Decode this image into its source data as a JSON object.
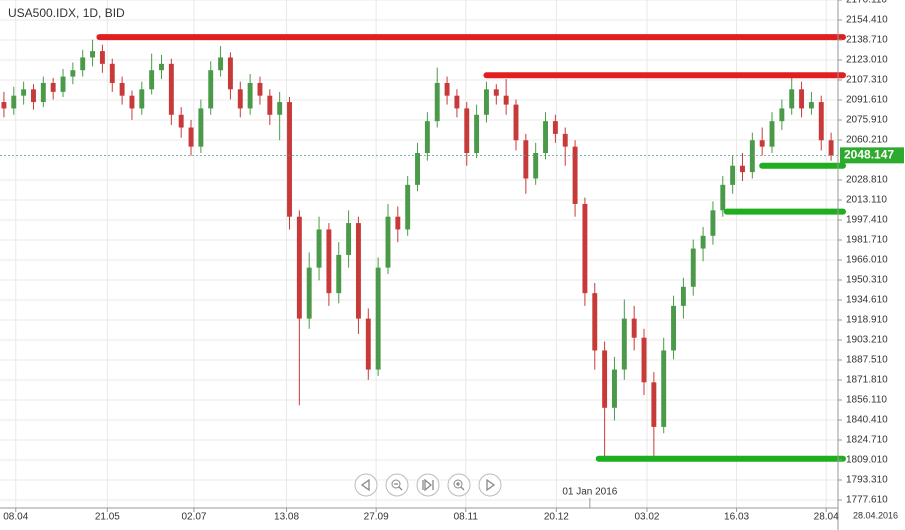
{
  "chart_data": {
    "type": "candlestick",
    "title": "USA500.IDX, 1D, BID",
    "up_color": "#4a9a4a",
    "down_color": "#c83a3a",
    "ohlc": [
      [
        2090,
        2098,
        2078,
        2085
      ],
      [
        2085,
        2102,
        2080,
        2095
      ],
      [
        2095,
        2106,
        2088,
        2100
      ],
      [
        2100,
        2104,
        2084,
        2090
      ],
      [
        2090,
        2110,
        2086,
        2105
      ],
      [
        2105,
        2109,
        2092,
        2098
      ],
      [
        2098,
        2116,
        2094,
        2110
      ],
      [
        2110,
        2121,
        2104,
        2115
      ],
      [
        2115,
        2131,
        2110,
        2125
      ],
      [
        2125,
        2139,
        2118,
        2130
      ],
      [
        2130,
        2135,
        2113,
        2120
      ],
      [
        2120,
        2124,
        2098,
        2105
      ],
      [
        2105,
        2110,
        2088,
        2095
      ],
      [
        2095,
        2099,
        2076,
        2085
      ],
      [
        2085,
        2106,
        2080,
        2100
      ],
      [
        2100,
        2128,
        2096,
        2115
      ],
      [
        2115,
        2127,
        2108,
        2120
      ],
      [
        2120,
        2124,
        2072,
        2080
      ],
      [
        2080,
        2086,
        2062,
        2070
      ],
      [
        2070,
        2076,
        2048,
        2055
      ],
      [
        2055,
        2092,
        2050,
        2085
      ],
      [
        2085,
        2122,
        2080,
        2115
      ],
      [
        2115,
        2134,
        2110,
        2125
      ],
      [
        2125,
        2129,
        2092,
        2100
      ],
      [
        2100,
        2106,
        2078,
        2085
      ],
      [
        2085,
        2112,
        2080,
        2105
      ],
      [
        2105,
        2110,
        2088,
        2095
      ],
      [
        2095,
        2100,
        2072,
        2080
      ],
      [
        2080,
        2098,
        2060,
        2090
      ],
      [
        2090,
        2094,
        1990,
        2000
      ],
      [
        2000,
        2005,
        1852,
        1920
      ],
      [
        1920,
        1972,
        1912,
        1960
      ],
      [
        1960,
        2000,
        1950,
        1990
      ],
      [
        1990,
        1995,
        1930,
        1940
      ],
      [
        1940,
        1980,
        1932,
        1970
      ],
      [
        1970,
        2005,
        1960,
        1995
      ],
      [
        1995,
        2000,
        1908,
        1920
      ],
      [
        1920,
        1928,
        1872,
        1880
      ],
      [
        1880,
        1968,
        1875,
        1960
      ],
      [
        1960,
        2010,
        1955,
        2000
      ],
      [
        2000,
        2008,
        1980,
        1990
      ],
      [
        1990,
        2032,
        1985,
        2025
      ],
      [
        2025,
        2058,
        2020,
        2050
      ],
      [
        2050,
        2082,
        2044,
        2075
      ],
      [
        2075,
        2117,
        2070,
        2105
      ],
      [
        2105,
        2110,
        2088,
        2095
      ],
      [
        2095,
        2100,
        2078,
        2085
      ],
      [
        2085,
        2090,
        2040,
        2050
      ],
      [
        2050,
        2088,
        2046,
        2080
      ],
      [
        2080,
        2106,
        2074,
        2100
      ],
      [
        2100,
        2104,
        2088,
        2095
      ],
      [
        2095,
        2108,
        2080,
        2088
      ],
      [
        2088,
        2092,
        2052,
        2060
      ],
      [
        2060,
        2065,
        2018,
        2030
      ],
      [
        2030,
        2058,
        2025,
        2050
      ],
      [
        2050,
        2082,
        2045,
        2075
      ],
      [
        2075,
        2080,
        2058,
        2065
      ],
      [
        2065,
        2070,
        2040,
        2055
      ],
      [
        2055,
        2060,
        2000,
        2010
      ],
      [
        2010,
        2015,
        1930,
        1940
      ],
      [
        1940,
        1948,
        1880,
        1895
      ],
      [
        1895,
        1902,
        1812,
        1850
      ],
      [
        1850,
        1890,
        1840,
        1880
      ],
      [
        1880,
        1935,
        1872,
        1920
      ],
      [
        1920,
        1930,
        1895,
        1905
      ],
      [
        1905,
        1912,
        1860,
        1870
      ],
      [
        1870,
        1878,
        1812,
        1835
      ],
      [
        1835,
        1905,
        1830,
        1895
      ],
      [
        1895,
        1938,
        1888,
        1930
      ],
      [
        1930,
        1952,
        1920,
        1945
      ],
      [
        1945,
        1982,
        1938,
        1975
      ],
      [
        1975,
        1992,
        1965,
        1985
      ],
      [
        1985,
        2012,
        1978,
        2005
      ],
      [
        2005,
        2032,
        2000,
        2025
      ],
      [
        2025,
        2048,
        2018,
        2040
      ],
      [
        2040,
        2050,
        2028,
        2035
      ],
      [
        2035,
        2066,
        2030,
        2060
      ],
      [
        2060,
        2070,
        2048,
        2055
      ],
      [
        2055,
        2082,
        2050,
        2075
      ],
      [
        2075,
        2092,
        2068,
        2085
      ],
      [
        2085,
        2110,
        2080,
        2100
      ],
      [
        2100,
        2106,
        2078,
        2085
      ],
      [
        2085,
        2098,
        2080,
        2090
      ],
      [
        2090,
        2095,
        2052,
        2060
      ],
      [
        2060,
        2066,
        2044,
        2048.147
      ]
    ],
    "xlim": [
      -0.4,
      84.7
    ],
    "xticks": [
      {
        "value": 1.2,
        "label": "08.04"
      },
      {
        "value": 10.5,
        "label": "21.05"
      },
      {
        "value": 19.3,
        "label": "02.07"
      },
      {
        "value": 28.7,
        "label": "13.08"
      },
      {
        "value": 37.8,
        "label": "27.09"
      },
      {
        "value": 46.9,
        "label": "08.11"
      },
      {
        "value": 56.1,
        "label": "20.12"
      },
      {
        "value": 65.3,
        "label": "03.02"
      },
      {
        "value": 74.4,
        "label": "16.03"
      },
      {
        "value": 83.5,
        "label": "28.04"
      }
    ],
    "marker": {
      "value": 59.5,
      "label": "01 Jan 2016"
    },
    "end_date": "28.04.2016",
    "ylim": [
      1771.33,
      2170.11
    ],
    "yticks": [
      {
        "value": 2170.11,
        "label": "2170.110"
      },
      {
        "value": 2154.41,
        "label": "2154.410"
      },
      {
        "value": 2138.71,
        "label": "2138.710"
      },
      {
        "value": 2123.01,
        "label": "2123.010"
      },
      {
        "value": 2107.31,
        "label": "2107.310"
      },
      {
        "value": 2091.61,
        "label": "2091.610"
      },
      {
        "value": 2075.91,
        "label": "2075.910"
      },
      {
        "value": 2060.21,
        "label": "2060.210"
      },
      {
        "value": 2028.81,
        "label": "2028.810"
      },
      {
        "value": 2013.11,
        "label": "2013.110"
      },
      {
        "value": 1997.41,
        "label": "1997.410"
      },
      {
        "value": 1981.71,
        "label": "1981.710"
      },
      {
        "value": 1966.01,
        "label": "1966.010"
      },
      {
        "value": 1950.31,
        "label": "1950.310"
      },
      {
        "value": 1934.61,
        "label": "1934.610"
      },
      {
        "value": 1918.91,
        "label": "1918.910"
      },
      {
        "value": 1903.21,
        "label": "1903.210"
      },
      {
        "value": 1887.51,
        "label": "1887.510"
      },
      {
        "value": 1871.81,
        "label": "1871.810"
      },
      {
        "value": 1856.11,
        "label": "1856.110"
      },
      {
        "value": 1840.41,
        "label": "1840.410"
      },
      {
        "value": 1824.71,
        "label": "1824.710"
      },
      {
        "value": 1809.01,
        "label": "1809.010"
      },
      {
        "value": 1793.31,
        "label": "1793.310"
      },
      {
        "value": 1777.61,
        "label": "1777.610"
      }
    ],
    "grid": true,
    "last_price": 2048.147,
    "last_color": "#2eaa2e",
    "levels": [
      {
        "value": 2141,
        "from": 9.7,
        "color": "#e02020"
      },
      {
        "value": 2111,
        "from": 49,
        "color": "#e02020"
      },
      {
        "value": 2040,
        "from": 77,
        "color": "#1fae1f"
      },
      {
        "value": 2004,
        "from": 73.4,
        "color": "#1fae1f"
      },
      {
        "value": 1810,
        "from": 60.4,
        "color": "#1fae1f"
      }
    ]
  }
}
